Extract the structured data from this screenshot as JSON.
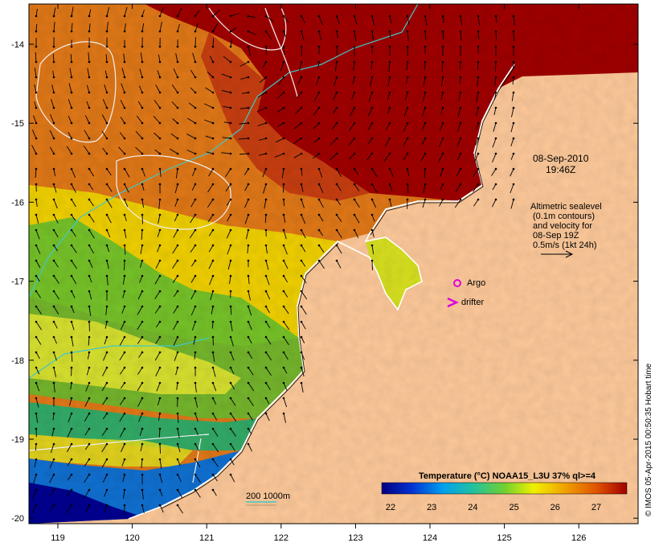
{
  "map": {
    "x_ticks": [
      "119",
      "120",
      "121",
      "122",
      "123",
      "124",
      "125",
      "126"
    ],
    "y_ticks": [
      "-14",
      "-15",
      "-16",
      "-17",
      "-18",
      "-19",
      "-20"
    ],
    "date": "08-Sep-2010",
    "time": "19:46Z",
    "altimetry_note": [
      "Altimetric sealevel",
      "(0.1m contours)",
      "and velocity for",
      "08-Sep 19Z",
      "0.5m/s (1kt 24h)"
    ],
    "argo_label": "Argo",
    "drifter_label": "drifter",
    "depth_label": "200  1000m",
    "legend_title": "Temperature (°C) NOAA15_L3U 37% ql>=4",
    "legend_ticks": [
      "22",
      "23",
      "24",
      "25",
      "26",
      "27"
    ],
    "credit": "© IMOS 05-Apr-2015 00:50:35 Hobart time",
    "colors": {
      "land": "#fdc99a",
      "hot": "#a00000",
      "orange": "#e07818",
      "yellow": "#f0e010",
      "green": "#58c030",
      "teal": "#20a888",
      "blue": "#1060d0",
      "navy": "#000090",
      "argo": "#e000e0",
      "isobath": "#40c8c8"
    }
  }
}
